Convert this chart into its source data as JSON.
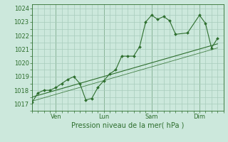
{
  "xlabel": "Pression niveau de la mer( hPa )",
  "bg_color": "#cce8dc",
  "grid_color": "#a8ccbc",
  "line_color": "#2d6e2d",
  "ylim": [
    1016.5,
    1024.3
  ],
  "xlim": [
    0,
    96
  ],
  "day_ticks": [
    12,
    36,
    60,
    84
  ],
  "day_labels": [
    "Ven",
    "Lun",
    "Sam",
    "Dim"
  ],
  "day_vlines": [
    12,
    36,
    60,
    84
  ],
  "yticks": [
    1017,
    1018,
    1019,
    1020,
    1021,
    1022,
    1023,
    1024
  ],
  "series1": [
    [
      0,
      1017.1
    ],
    [
      3,
      1017.8
    ],
    [
      6,
      1018.0
    ],
    [
      9,
      1018.0
    ],
    [
      12,
      1018.2
    ],
    [
      15,
      1018.5
    ],
    [
      18,
      1018.8
    ],
    [
      21,
      1019.0
    ],
    [
      24,
      1018.5
    ],
    [
      27,
      1017.3
    ],
    [
      30,
      1017.4
    ],
    [
      33,
      1018.2
    ],
    [
      36,
      1018.7
    ],
    [
      39,
      1019.2
    ],
    [
      42,
      1019.5
    ],
    [
      45,
      1020.5
    ],
    [
      48,
      1020.5
    ],
    [
      51,
      1020.5
    ],
    [
      54,
      1021.2
    ],
    [
      57,
      1023.0
    ],
    [
      60,
      1023.5
    ],
    [
      63,
      1023.2
    ],
    [
      66,
      1023.4
    ],
    [
      69,
      1023.1
    ],
    [
      72,
      1022.1
    ],
    [
      78,
      1022.2
    ],
    [
      84,
      1023.5
    ],
    [
      87,
      1022.9
    ],
    [
      90,
      1021.1
    ],
    [
      93,
      1021.8
    ]
  ],
  "trend_line1": [
    [
      0,
      1017.5
    ],
    [
      93,
      1021.4
    ]
  ],
  "trend_line2": [
    [
      0,
      1017.2
    ],
    [
      93,
      1021.1
    ]
  ],
  "xlabel_fontsize": 7,
  "tick_fontsize": 6,
  "marker_size": 2.0
}
